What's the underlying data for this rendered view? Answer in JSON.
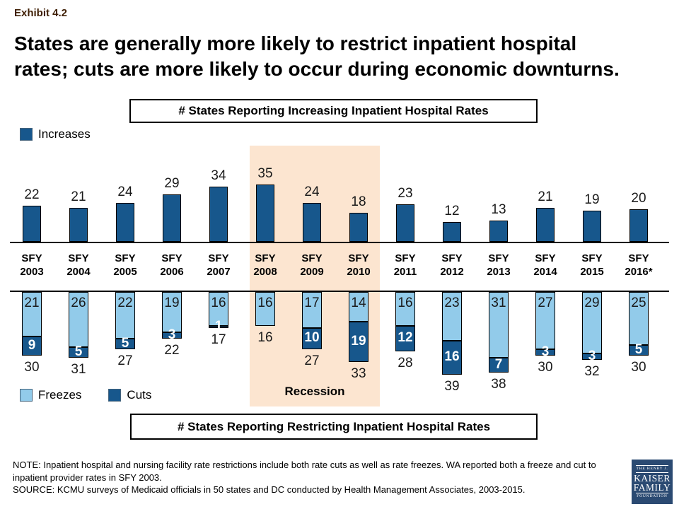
{
  "exhibit": "Exhibit 4.2",
  "title": {
    "line1": "States are generally more likely to restrict inpatient hospital",
    "line2": "rates; cuts are more likely to occur during economic downturns."
  },
  "top_chart_title": "# States Reporting Increasing Inpatient Hospital Rates",
  "bottom_chart_title": "# States Reporting Restricting Inpatient Hospital Rates",
  "legend": {
    "increases": "Increases",
    "freezes": "Freezes",
    "cuts": "Cuts"
  },
  "recession_label": "Recession",
  "note": "NOTE: Inpatient hospital and nursing facility rate restrictions include both rate cuts as well as rate freezes. WA reported both a freeze and cut to inpatient provider rates in SFY 2003.",
  "source": "SOURCE: KCMU surveys of Medicaid officials in 50 states and DC conducted by Health Management Associates, 2003-2015.",
  "logo": {
    "line1": "THE HENRY J.",
    "line2": "KAISER",
    "line3": "FAMILY",
    "line4": "FOUNDATION"
  },
  "colors": {
    "dark_blue": "#17578C",
    "light_blue": "#92CBEA",
    "recession_band": "#FCE5D0",
    "logo_navy": "#2B4A72",
    "exhibit_text": "#402006"
  },
  "chart_data": {
    "type": "bar",
    "categories": [
      "SFY 2003",
      "SFY 2004",
      "SFY 2005",
      "SFY 2006",
      "SFY 2007",
      "SFY 2008",
      "SFY 2009",
      "SFY 2010",
      "SFY 2011",
      "SFY 2012",
      "SFY 2013",
      "SFY 2014",
      "SFY 2015",
      "SFY 2016*"
    ],
    "series": [
      {
        "name": "Increases",
        "values": [
          22,
          21,
          24,
          29,
          34,
          35,
          24,
          18,
          23,
          12,
          13,
          21,
          19,
          20
        ]
      },
      {
        "name": "Freezes",
        "values": [
          21,
          26,
          22,
          19,
          16,
          16,
          17,
          14,
          16,
          23,
          31,
          27,
          29,
          25
        ]
      },
      {
        "name": "Cuts",
        "values": [
          9,
          5,
          5,
          3,
          1,
          0,
          10,
          19,
          12,
          16,
          7,
          3,
          3,
          5
        ]
      }
    ],
    "totals_restricting": [
      30,
      31,
      27,
      22,
      17,
      16,
      27,
      33,
      28,
      39,
      38,
      30,
      32,
      30
    ],
    "recession_years": [
      "SFY 2008",
      "SFY 2009",
      "SFY 2010"
    ],
    "top_chart_label": "# States Reporting Increasing Inpatient Hospital Rates",
    "bottom_chart_label": "# States Reporting Restricting Inpatient Hospital Rates",
    "layout": "increases bar chart above shared category axis; stacked freezes+cuts bars hang downward below; data labels on every segment; totals under each stacked bar; no y-axis shown"
  }
}
